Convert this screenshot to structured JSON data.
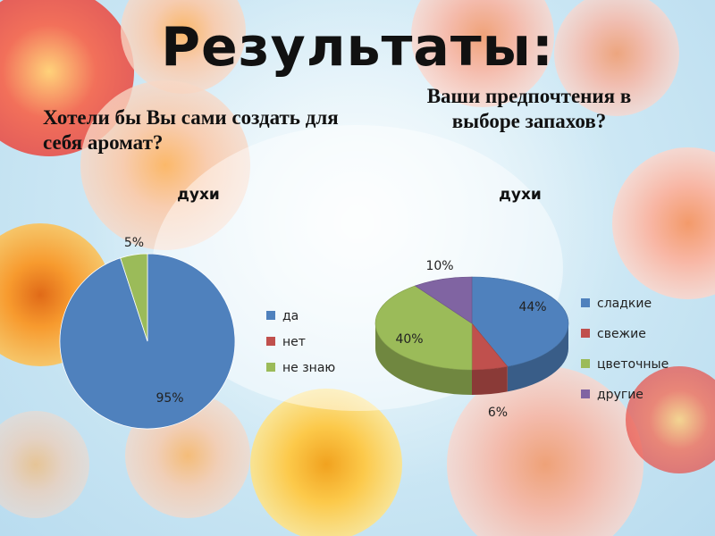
{
  "header": {
    "title": "Результаты:"
  },
  "questions": {
    "q1": "Хотели бы Вы сами создать для себя аромат?",
    "q2": "Ваши предпочтения в выборе запахов?"
  },
  "chart_data": [
    {
      "type": "pie",
      "title": "духи",
      "categories": [
        "да",
        "нет",
        "не знаю"
      ],
      "values": [
        95,
        0,
        5
      ],
      "labels": [
        "95%",
        "",
        "5%"
      ],
      "colors": [
        "#4f81bd",
        "#c0504d",
        "#9bbb59"
      ],
      "legend": "right",
      "three_d": false
    },
    {
      "type": "pie",
      "title": "духи",
      "categories": [
        "сладкие",
        "свежие",
        "цветочные",
        "другие"
      ],
      "values": [
        44,
        6,
        40,
        10
      ],
      "labels": [
        "44%",
        "6%",
        "40%",
        "10%"
      ],
      "colors": [
        "#4f81bd",
        "#c0504d",
        "#9bbb59",
        "#8064a2"
      ],
      "legend": "right",
      "three_d": true
    }
  ]
}
